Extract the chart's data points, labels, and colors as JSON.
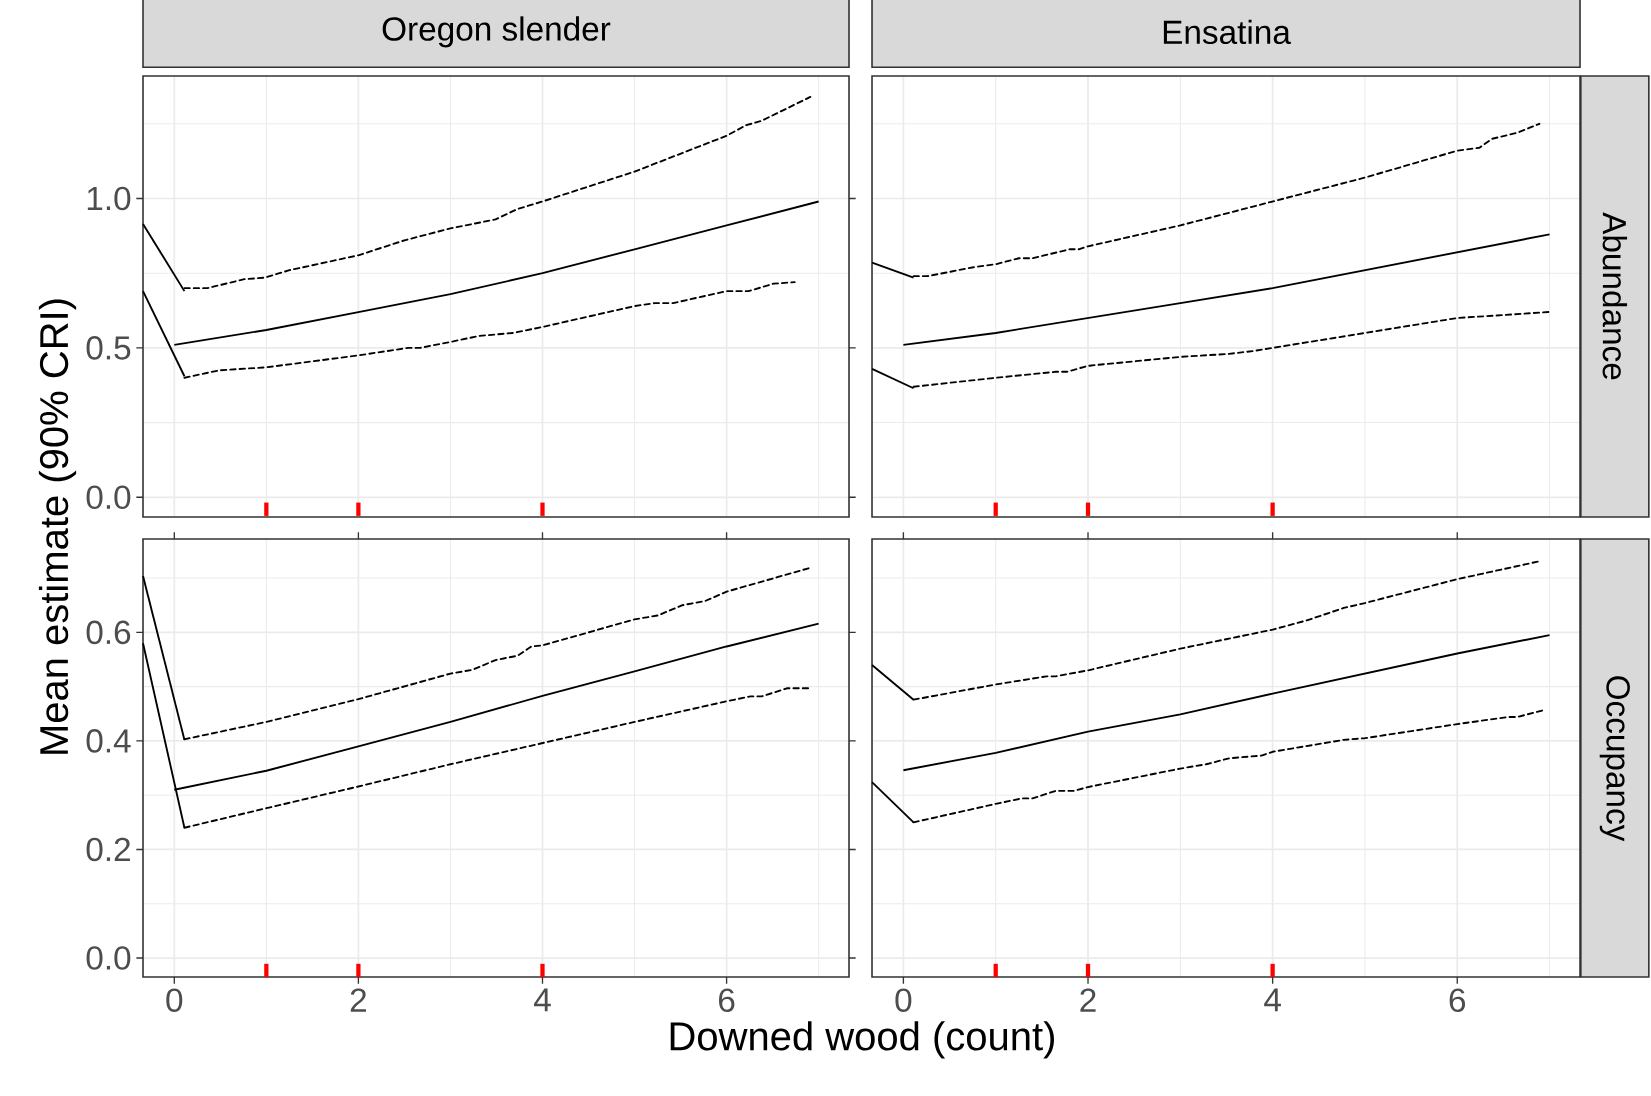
{
  "chart_data": [
    {
      "type": "line",
      "title": "Oregon slender",
      "ylabel": "Mean estimate (90% CRI)",
      "xlim": [
        -0.34,
        7.33
      ],
      "ylim": [
        -0.066,
        1.41
      ],
      "xticks": [
        0,
        2,
        4,
        6
      ],
      "yticks": [
        {
          "value": 0,
          "label": "0.0"
        },
        {
          "value": 0.5,
          "label": "0.5"
        },
        {
          "value": 1,
          "label": "1.0"
        }
      ],
      "grid": true,
      "tick_labels": "y",
      "series": [
        {
          "color": "#000000",
          "line_style": "solid",
          "x": [
            0,
            1,
            2,
            3,
            4,
            5,
            6,
            7
          ],
          "values": [
            0.51,
            0.56,
            0.62,
            0.68,
            0.75,
            0.83,
            0.91,
            0.99
          ]
        },
        {
          "color": "#000000",
          "line_style": "dashed",
          "x": [
            0.11,
            0.36,
            0.76,
            0.98,
            1.25,
            2,
            2.5,
            3,
            3.49,
            3.73,
            4,
            5,
            6,
            6.21,
            6.38,
            6.91
          ],
          "values": [
            0.7,
            0.7,
            0.73,
            0.735,
            0.76,
            0.81,
            0.86,
            0.9,
            0.93,
            0.965,
            0.99,
            1.09,
            1.21,
            1.245,
            1.26,
            1.34
          ]
        },
        {
          "color": "#000000",
          "line_style": "dashed",
          "x": [
            0.11,
            0.49,
            1,
            2,
            2.54,
            2.67,
            3,
            3.31,
            3.68,
            4,
            5,
            5.22,
            5.42,
            6,
            6.24,
            6.51,
            6.74
          ],
          "values": [
            0.4,
            0.425,
            0.435,
            0.475,
            0.5,
            0.5,
            0.52,
            0.54,
            0.55,
            0.57,
            0.64,
            0.65,
            0.65,
            0.69,
            0.69,
            0.715,
            0.72
          ]
        },
        {
          "color": "#000000",
          "line_style": "solid",
          "x": [
            -0.34,
            0.11
          ],
          "values": [
            0.915,
            0.69
          ]
        },
        {
          "color": "#000000",
          "line_style": "solid",
          "x": [
            -0.34,
            0.11
          ],
          "values": [
            0.69,
            0.405
          ]
        },
        {
          "type": "scatter",
          "color": "#ff0000",
          "x": [
            1,
            2,
            4
          ],
          "values": [
            -0.04,
            -0.04,
            -0.04
          ]
        }
      ]
    },
    {
      "type": "line",
      "title": "Ensatina",
      "y2label": "Abundance",
      "xlim": [
        -0.34,
        7.33
      ],
      "ylim": [
        -0.066,
        1.41
      ],
      "xticks": [
        0,
        2,
        4,
        6
      ],
      "yticks": [
        0,
        0.5,
        1
      ],
      "grid": true,
      "tick_labels": false,
      "series": [
        {
          "color": "#000000",
          "line_style": "solid",
          "x": [
            0,
            1,
            2,
            3,
            4,
            5,
            6,
            7
          ],
          "values": [
            0.51,
            0.55,
            0.6,
            0.65,
            0.7,
            0.76,
            0.82,
            0.88
          ]
        },
        {
          "color": "#000000",
          "line_style": "dashed",
          "x": [
            0.11,
            0.26,
            0.76,
            1,
            1.25,
            1.4,
            1.8,
            1.9,
            2,
            3,
            4,
            5,
            6,
            6.24,
            6.38,
            6.65,
            6.89
          ],
          "values": [
            0.74,
            0.74,
            0.77,
            0.78,
            0.8,
            0.8,
            0.83,
            0.83,
            0.84,
            0.91,
            0.99,
            1.07,
            1.16,
            1.17,
            1.2,
            1.22,
            1.25
          ]
        },
        {
          "color": "#000000",
          "line_style": "dashed",
          "x": [
            0.11,
            1,
            1.65,
            1.77,
            2,
            3,
            3.53,
            3.8,
            4,
            5,
            6,
            6.99
          ],
          "values": [
            0.37,
            0.4,
            0.42,
            0.42,
            0.44,
            0.47,
            0.48,
            0.49,
            0.5,
            0.55,
            0.6,
            0.62
          ]
        },
        {
          "color": "#000000",
          "line_style": "solid",
          "x": [
            -0.34,
            0.11
          ],
          "values": [
            0.785,
            0.735
          ]
        },
        {
          "color": "#000000",
          "line_style": "solid",
          "x": [
            -0.34,
            0.11
          ],
          "values": [
            0.43,
            0.365
          ]
        },
        {
          "type": "scatter",
          "color": "#ff0000",
          "x": [
            1,
            2,
            4
          ],
          "values": [
            -0.04,
            -0.04,
            -0.04
          ]
        }
      ]
    },
    {
      "type": "line",
      "xlabel": "Downed wood (count)",
      "xlim": [
        -0.34,
        7.33
      ],
      "ylim": [
        -0.035,
        0.772
      ],
      "xticks": [
        0,
        2,
        4,
        6
      ],
      "yticks": [
        {
          "value": 0,
          "label": "0.0"
        },
        {
          "value": 0.2,
          "label": "0.2"
        },
        {
          "value": 0.4,
          "label": "0.4"
        },
        {
          "value": 0.6,
          "label": "0.6"
        }
      ],
      "grid": true,
      "series": [
        {
          "color": "#000000",
          "line_style": "solid",
          "x": [
            0,
            1,
            2,
            3,
            4,
            5,
            6,
            7
          ],
          "values": [
            0.31,
            0.345,
            0.39,
            0.435,
            0.483,
            0.528,
            0.574,
            0.616
          ]
        },
        {
          "color": "#000000",
          "line_style": "dashed",
          "x": [
            0.11,
            1,
            2,
            3,
            3.24,
            3.49,
            3.73,
            3.88,
            4,
            5,
            5.25,
            5.52,
            5.77,
            6,
            6.91
          ],
          "values": [
            0.403,
            0.435,
            0.477,
            0.524,
            0.531,
            0.549,
            0.557,
            0.574,
            0.576,
            0.624,
            0.631,
            0.65,
            0.658,
            0.675,
            0.719
          ]
        },
        {
          "color": "#000000",
          "line_style": "dashed",
          "x": [
            0.11,
            1,
            2,
            3,
            4,
            5,
            6,
            6.26,
            6.38,
            6.66,
            6.89
          ],
          "values": [
            0.24,
            0.276,
            0.316,
            0.357,
            0.396,
            0.435,
            0.473,
            0.482,
            0.482,
            0.497,
            0.497
          ]
        },
        {
          "color": "#000000",
          "line_style": "solid",
          "x": [
            -0.34,
            0.11
          ],
          "values": [
            0.704,
            0.402
          ]
        },
        {
          "color": "#000000",
          "line_style": "solid",
          "x": [
            -0.34,
            0.11
          ],
          "values": [
            0.58,
            0.24
          ]
        },
        {
          "type": "scatter",
          "color": "#ff0000",
          "x": [
            1,
            2,
            4
          ],
          "values": [
            -0.023,
            -0.023,
            -0.023
          ]
        }
      ]
    },
    {
      "type": "line",
      "y2label": "Occupancy",
      "xlim": [
        -0.34,
        7.33
      ],
      "ylim": [
        -0.035,
        0.772
      ],
      "xticks": [
        0,
        2,
        4,
        6
      ],
      "yticks": [
        0,
        0.2,
        0.4,
        0.6
      ],
      "grid": true,
      "tick_labels": "x",
      "series": [
        {
          "color": "#000000",
          "line_style": "solid",
          "x": [
            0,
            1,
            2,
            3,
            4,
            5,
            6,
            7
          ],
          "values": [
            0.346,
            0.378,
            0.417,
            0.449,
            0.487,
            0.524,
            0.561,
            0.595
          ]
        },
        {
          "color": "#000000",
          "line_style": "dashed",
          "x": [
            0.11,
            1,
            1.55,
            1.65,
            2,
            3,
            4,
            4.37,
            4.77,
            5,
            6,
            6.89
          ],
          "values": [
            0.476,
            0.504,
            0.519,
            0.519,
            0.53,
            0.57,
            0.605,
            0.622,
            0.645,
            0.654,
            0.698,
            0.731
          ]
        },
        {
          "color": "#000000",
          "line_style": "dashed",
          "x": [
            0.11,
            1,
            1.28,
            1.4,
            1.65,
            1.85,
            2,
            3,
            3.28,
            3.53,
            3.88,
            4,
            4.77,
            5,
            6,
            6.55,
            6.65,
            6.92
          ],
          "values": [
            0.25,
            0.284,
            0.294,
            0.294,
            0.308,
            0.308,
            0.315,
            0.349,
            0.357,
            0.368,
            0.373,
            0.38,
            0.402,
            0.405,
            0.431,
            0.444,
            0.444,
            0.456
          ]
        },
        {
          "color": "#000000",
          "line_style": "solid",
          "x": [
            -0.34,
            0.11
          ],
          "values": [
            0.54,
            0.476
          ]
        },
        {
          "color": "#000000",
          "line_style": "solid",
          "x": [
            -0.34,
            0.11
          ],
          "values": [
            0.324,
            0.25
          ]
        },
        {
          "type": "scatter",
          "color": "#ff0000",
          "x": [
            1,
            2,
            4
          ],
          "values": [
            -0.023,
            -0.023,
            -0.023
          ]
        }
      ]
    }
  ]
}
